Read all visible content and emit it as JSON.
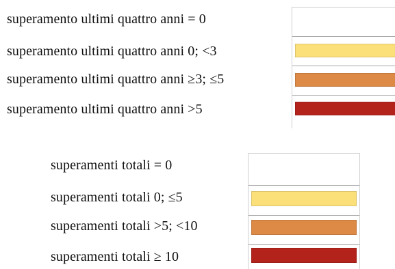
{
  "legend_top": {
    "rows": [
      {
        "label": "superamento ultimi quattro anni = 0",
        "color": "#ffffff"
      },
      {
        "label": "superamento ultimi quattro anni 0; <3",
        "color": "#fbe07a"
      },
      {
        "label": "superamento ultimi quattro anni ≥3; ≤5",
        "color": "#de8a47"
      },
      {
        "label": "superamento ultimi quattro anni >5",
        "color": "#b3231c"
      }
    ]
  },
  "legend_bottom": {
    "rows": [
      {
        "label": "superamenti totali = 0",
        "color": "#ffffff"
      },
      {
        "label": "superamenti totali 0; ≤5",
        "color": "#fbe07a"
      },
      {
        "label": "superamenti totali >5; <10",
        "color": "#de8a47"
      },
      {
        "label": "superamenti totali ≥ 10",
        "color": "#b3231c"
      }
    ]
  }
}
